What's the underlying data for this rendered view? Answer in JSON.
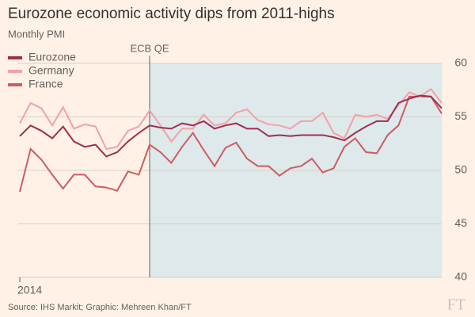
{
  "chart_data": {
    "type": "line",
    "title": "Eurozone economic activity dips from 2011-highs",
    "subtitle": "Monthly PMI",
    "source": "Source: IHS Markit; Graphic: Mehreen Khan/FT",
    "logo": "FT",
    "annotation": {
      "text": "ECB QE",
      "category_index": 12
    },
    "categories": [
      "2014",
      null,
      null,
      null,
      null,
      null,
      null,
      null,
      null,
      null,
      null,
      null,
      null,
      null,
      null,
      null,
      null,
      null,
      null,
      null,
      null,
      null,
      null,
      null,
      null,
      null,
      null,
      null,
      null,
      null,
      null,
      null,
      null,
      null,
      null,
      null,
      null,
      null,
      null,
      null
    ],
    "series": [
      {
        "name": "Eurozone",
        "color": "#9e2f50",
        "values": [
          53.2,
          54.2,
          53.7,
          53.0,
          54.1,
          52.7,
          52.2,
          52.4,
          51.3,
          51.7,
          52.7,
          53.5,
          54.2,
          54.0,
          53.9,
          54.4,
          54.2,
          54.6,
          53.9,
          54.2,
          54.4,
          53.9,
          53.9,
          53.2,
          53.3,
          53.2,
          53.3,
          53.3,
          53.3,
          53.1,
          52.8,
          53.5,
          54.1,
          54.6,
          54.6,
          56.3,
          56.7,
          57.0,
          56.9,
          55.8
        ]
      },
      {
        "name": "Germany",
        "color": "#f4a0a7",
        "values": [
          54.4,
          56.3,
          55.8,
          54.2,
          55.9,
          53.9,
          54.3,
          54.1,
          52.0,
          52.2,
          53.7,
          54.1,
          55.6,
          54.2,
          52.7,
          53.9,
          53.9,
          55.2,
          54.2,
          54.4,
          55.4,
          55.7,
          54.7,
          54.3,
          54.2,
          53.9,
          54.6,
          54.6,
          55.4,
          53.5,
          53.0,
          55.2,
          55.0,
          55.2,
          54.8,
          56.1,
          57.3,
          56.9,
          57.6,
          56.3
        ]
      },
      {
        "name": "France",
        "color": "#cf5b63",
        "values": [
          48.0,
          52.0,
          51.0,
          49.6,
          48.3,
          49.6,
          49.6,
          48.5,
          48.4,
          48.1,
          49.9,
          49.6,
          52.4,
          51.7,
          50.7,
          52.2,
          53.5,
          51.9,
          50.4,
          52.1,
          52.6,
          51.1,
          50.4,
          50.4,
          49.5,
          50.2,
          50.4,
          51.1,
          49.8,
          50.2,
          52.2,
          53.0,
          51.7,
          51.6,
          53.3,
          54.2,
          56.9,
          56.9,
          56.9,
          55.3
        ]
      }
    ],
    "ylim": [
      40,
      60
    ],
    "yticks": [
      40,
      45,
      50,
      55,
      60
    ],
    "grid": true
  }
}
